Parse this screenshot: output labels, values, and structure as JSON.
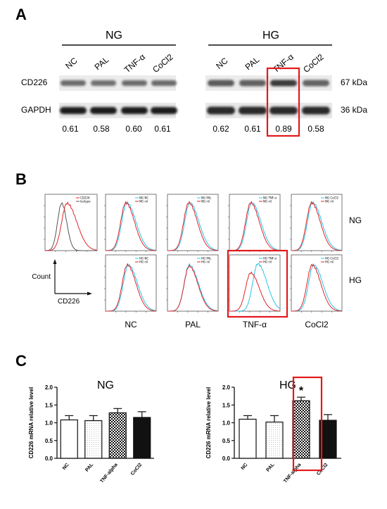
{
  "panelA": {
    "label": "A",
    "ng_title": "NG",
    "hg_title": "HG",
    "lanes": [
      "NC",
      "PAL",
      "TNF-α",
      "CoCl2"
    ],
    "rows": [
      {
        "name": "CD226",
        "kda": "67 kDa"
      },
      {
        "name": "GAPDH",
        "kda": "36 kDa"
      }
    ],
    "ratios_ng": [
      "0.61",
      "0.58",
      "0.60",
      "0.61"
    ],
    "ratios_hg": [
      "0.62",
      "0.61",
      "0.89",
      "0.58"
    ],
    "highlight_color": "#e3191c"
  },
  "panelB": {
    "label": "B",
    "row_labels": [
      "NG",
      "HG"
    ],
    "col_labels": [
      "NC",
      "PAL",
      "TNF-α",
      "CoCl2"
    ],
    "axis_y": "Count",
    "axis_x": "CD226",
    "iso_legend": [
      "CD226",
      "Isotype"
    ],
    "ng_legends": [
      [
        "NG NC",
        "NG nil"
      ],
      [
        "NG PAL",
        "NG nil"
      ],
      [
        "NG TNF-α",
        "NG nil"
      ],
      [
        "NG CoCl2",
        "NG nil"
      ]
    ],
    "hg_legends": [
      [
        "HG NC",
        "HG nil"
      ],
      [
        "HG PAL",
        "HG nil"
      ],
      [
        "HG TNF-α",
        "HG nil"
      ],
      [
        "HG CoCl2",
        "HG nil"
      ]
    ],
    "colors": {
      "cyan": "#2ec5e6",
      "red": "#e0262b",
      "gray": "#555555"
    }
  },
  "chart_data": [
    {
      "type": "bar",
      "title": "NG",
      "categories": [
        "NC",
        "PAL",
        "TNF-alpha",
        "CoCl2"
      ],
      "values": [
        1.08,
        1.06,
        1.28,
        1.15
      ],
      "errors": [
        0.12,
        0.14,
        0.12,
        0.16
      ],
      "ylabel": "CD226 mRNA relative level",
      "ylim": [
        0,
        2.0
      ],
      "yticks": [
        "0.0",
        "0.5",
        "1.0",
        "1.5",
        "2.0"
      ],
      "fills": [
        "open",
        "dotted",
        "checkered",
        "black"
      ]
    },
    {
      "type": "bar",
      "title": "HG",
      "categories": [
        "NC",
        "PAL",
        "TNF-alpha",
        "CoCl2"
      ],
      "values": [
        1.1,
        1.02,
        1.62,
        1.07
      ],
      "errors": [
        0.1,
        0.18,
        0.1,
        0.16
      ],
      "ylabel": "CD226 mRNA relative level",
      "ylim": [
        0,
        2.0
      ],
      "yticks": [
        "0.0",
        "0.5",
        "1.0",
        "1.5",
        "2.0"
      ],
      "fills": [
        "open",
        "dotted",
        "checkered",
        "black"
      ],
      "annotation": "*"
    }
  ],
  "panelC": {
    "label": "C"
  }
}
